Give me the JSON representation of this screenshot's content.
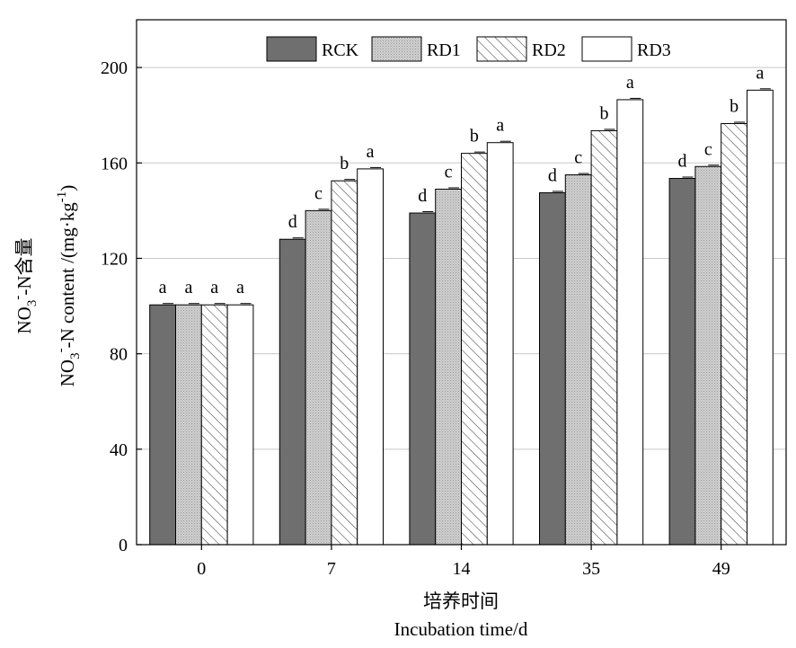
{
  "chart_data": {
    "type": "bar",
    "categories": [
      "0",
      "7",
      "14",
      "35",
      "49"
    ],
    "series": [
      {
        "name": "RCK",
        "values": [
          100.5,
          128,
          139,
          147.5,
          153.5
        ],
        "letters": [
          "a",
          "d",
          "d",
          "d",
          "d"
        ],
        "fill": "#6f6f6f",
        "pattern": "solid"
      },
      {
        "name": "RD1",
        "values": [
          100.5,
          140,
          149,
          155,
          158.5
        ],
        "letters": [
          "a",
          "c",
          "c",
          "c",
          "c"
        ],
        "fill": "#c8c8c8",
        "pattern": "dotted"
      },
      {
        "name": "RD2",
        "values": [
          100.5,
          152.5,
          164,
          173.5,
          176.5
        ],
        "letters": [
          "a",
          "b",
          "b",
          "b",
          "b"
        ],
        "fill": "#ffffff",
        "pattern": "hatched"
      },
      {
        "name": "RD3",
        "values": [
          100.5,
          157.5,
          168.5,
          186.5,
          190.5
        ],
        "letters": [
          "a",
          "a",
          "a",
          "a",
          "a"
        ],
        "fill": "#ffffff",
        "pattern": "solid"
      }
    ],
    "ylabel_cn": "NO3--N含量",
    "ylabel_en": "NO3--N content /(mg·kg-1)",
    "xlabel_cn": "培养时间",
    "xlabel_en": "Incubation time/d",
    "ylim": [
      0,
      220
    ],
    "yticks": [
      0,
      40,
      80,
      120,
      160,
      200
    ],
    "grid": "horizontal",
    "legend": "top"
  }
}
